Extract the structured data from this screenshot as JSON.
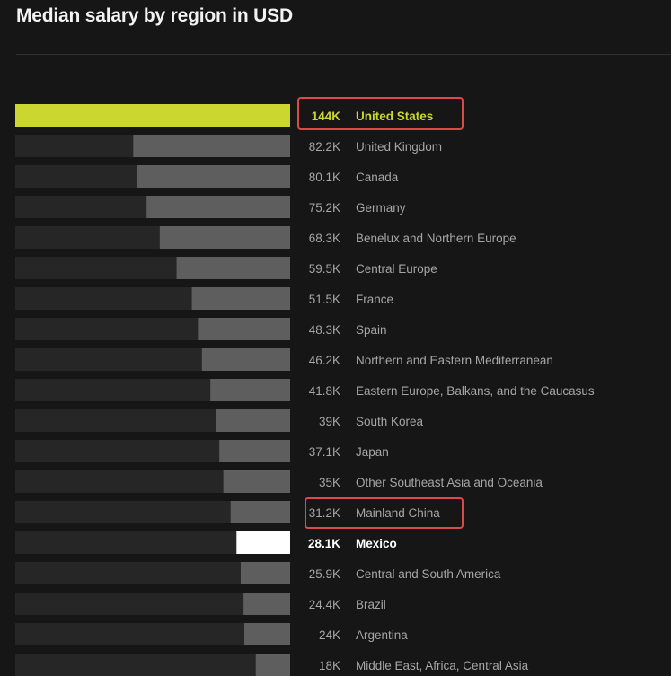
{
  "title": "Median salary by region in USD",
  "colors": {
    "background": "#161616",
    "track": "#262626",
    "bar": "#5e5e5e",
    "top_bar": "#cbd630",
    "mexico_bar": "#ffffff",
    "label": "#a6a6a6",
    "highlight_box": "#d94b4b"
  },
  "chart_data": {
    "type": "bar",
    "orientation": "horizontal",
    "bar_direction": "right-to-left",
    "title": "Median salary by region in USD",
    "unit": "USD",
    "xlim": [
      0,
      144000
    ],
    "categories": [
      "United States",
      "United Kingdom",
      "Canada",
      "Germany",
      "Benelux and Northern Europe",
      "Central Europe",
      "France",
      "Spain",
      "Northern and Eastern Mediterranean",
      "Eastern Europe, Balkans, and the Caucasus",
      "South Korea",
      "Japan",
      "Other Southeast Asia and Oceania",
      "Mainland China",
      "Mexico",
      "Central and South America",
      "Brazil",
      "Argentina",
      "Middle East, Africa, Central Asia"
    ],
    "values": [
      144000,
      82200,
      80100,
      75200,
      68300,
      59500,
      51500,
      48300,
      46200,
      41800,
      39000,
      37100,
      35000,
      31200,
      28100,
      25900,
      24400,
      24000,
      18000
    ],
    "value_labels": [
      "144K",
      "82.2K",
      "80.1K",
      "75.2K",
      "68.3K",
      "59.5K",
      "51.5K",
      "48.3K",
      "46.2K",
      "41.8K",
      "39K",
      "37.1K",
      "35K",
      "31.2K",
      "28.1K",
      "25.9K",
      "24.4K",
      "24K",
      "18K"
    ],
    "emphasized": [
      "United States",
      "Mexico"
    ],
    "boxed": [
      "United States",
      "Mainland China"
    ],
    "grid": false,
    "legend": "none"
  }
}
